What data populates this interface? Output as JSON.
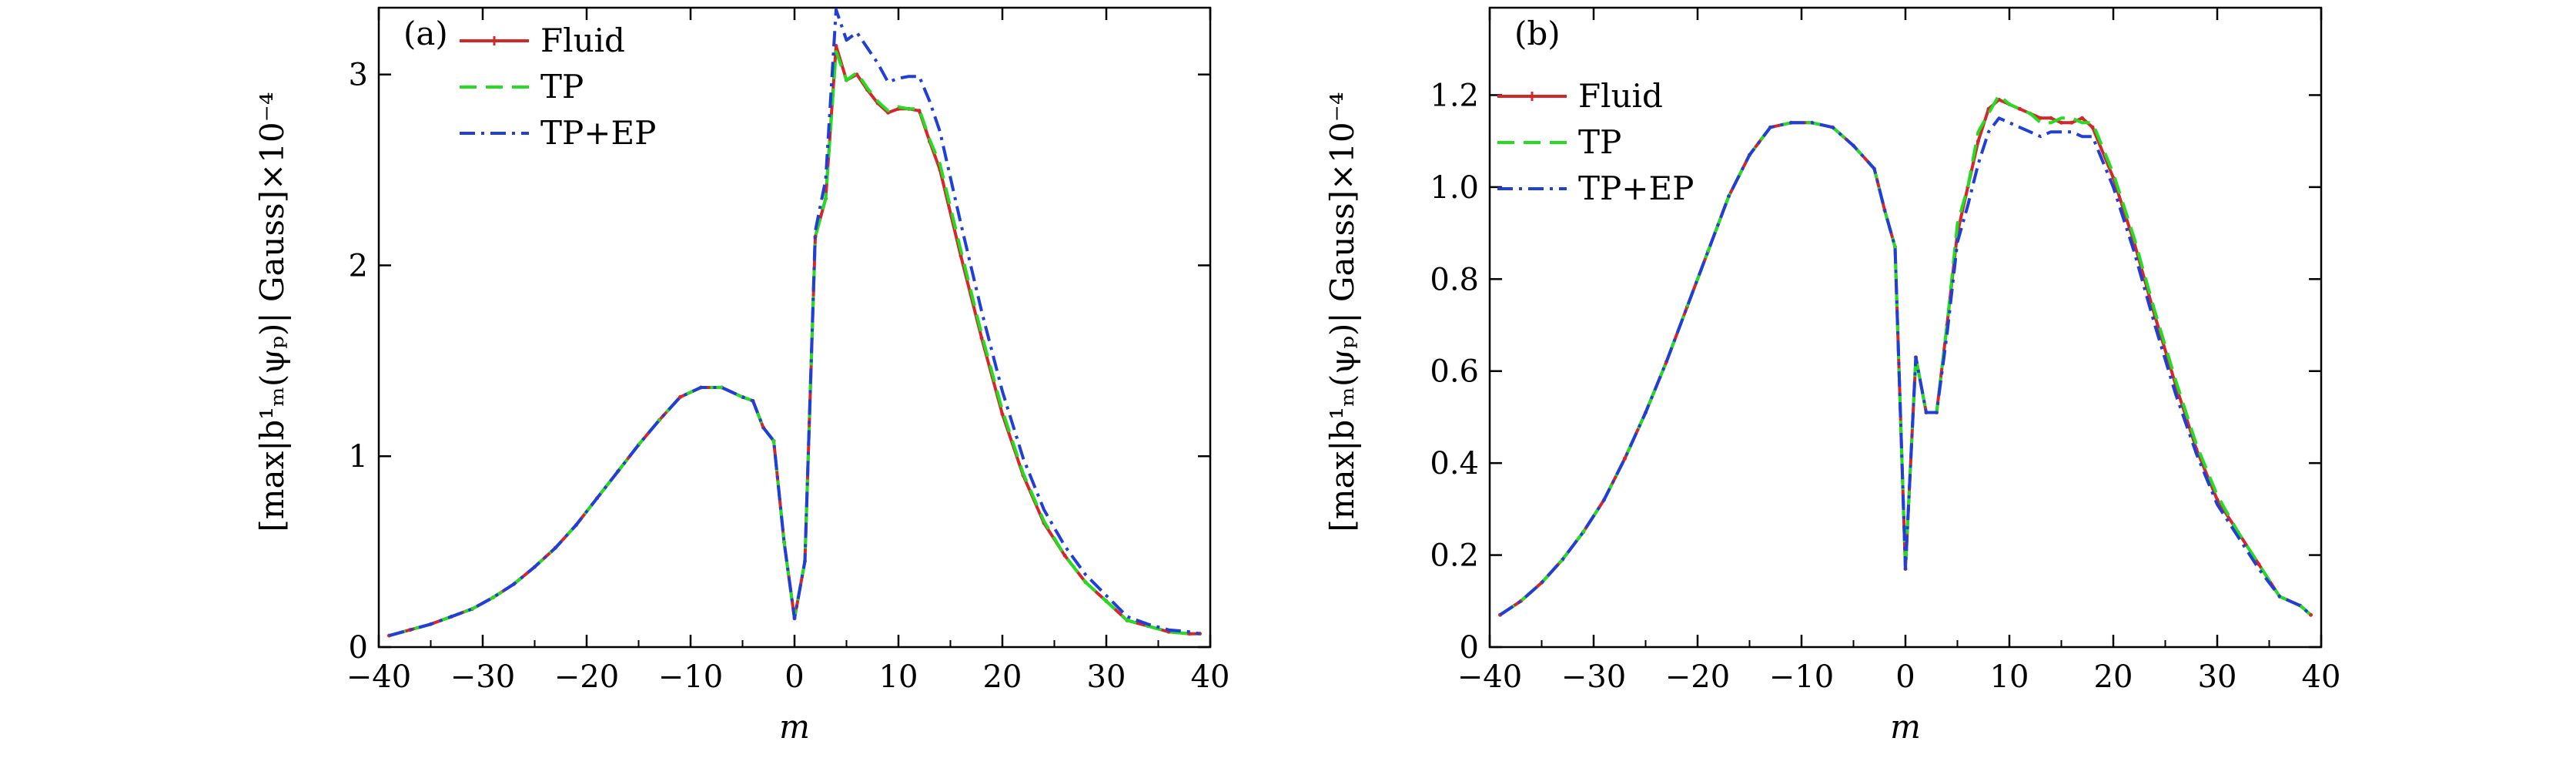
{
  "colors": {
    "fluid": "#d62728",
    "tp": "#22dd22",
    "tpep": "#1f3fd8",
    "axis": "#000000"
  },
  "chart_data": [
    {
      "type": "line",
      "panel_label": "(a)",
      "xlabel": "m",
      "ylabel": "[max|b¹ₘ(ψₚ)| Gauss]×10⁻⁴",
      "xlim": [
        -40,
        40
      ],
      "ylim": [
        0,
        3.35
      ],
      "xticks": [
        -40,
        -30,
        -20,
        -10,
        0,
        10,
        20,
        30,
        40
      ],
      "xtick_labels": [
        "−40",
        "−30",
        "−20",
        "−10",
        "0",
        "10",
        "20",
        "30",
        "40"
      ],
      "yticks": [
        0,
        1,
        2,
        3
      ],
      "ytick_labels": [
        "0",
        "1",
        "2",
        "3"
      ],
      "legend_position": "top-left",
      "series": [
        {
          "name": "Fluid",
          "style": "solid",
          "x": [
            -39,
            -37,
            -35,
            -33,
            -31,
            -29,
            -27,
            -25,
            -23,
            -21,
            -19,
            -17,
            -15,
            -13,
            -11,
            -9,
            -7,
            -5,
            -4,
            -3,
            -2,
            -1,
            0,
            1,
            2,
            3,
            4,
            5,
            6,
            7,
            8,
            9,
            10,
            11,
            12,
            13,
            14,
            16,
            18,
            20,
            22,
            24,
            26,
            28,
            30,
            32,
            34,
            36,
            38,
            39
          ],
          "y": [
            0.06,
            0.09,
            0.12,
            0.16,
            0.2,
            0.26,
            0.33,
            0.42,
            0.52,
            0.64,
            0.78,
            0.92,
            1.06,
            1.19,
            1.31,
            1.36,
            1.36,
            1.31,
            1.29,
            1.15,
            1.08,
            0.55,
            0.15,
            0.45,
            2.15,
            2.35,
            3.15,
            2.97,
            3.0,
            2.92,
            2.85,
            2.8,
            2.82,
            2.82,
            2.81,
            2.65,
            2.5,
            2.05,
            1.62,
            1.22,
            0.9,
            0.65,
            0.48,
            0.34,
            0.24,
            0.14,
            0.11,
            0.08,
            0.07,
            0.07
          ]
        },
        {
          "name": "TP",
          "style": "dashed",
          "x": [
            -39,
            -37,
            -35,
            -33,
            -31,
            -29,
            -27,
            -25,
            -23,
            -21,
            -19,
            -17,
            -15,
            -13,
            -11,
            -9,
            -7,
            -5,
            -4,
            -3,
            -2,
            -1,
            0,
            1,
            2,
            3,
            4,
            5,
            6,
            7,
            8,
            9,
            10,
            11,
            12,
            13,
            14,
            16,
            18,
            20,
            22,
            24,
            26,
            28,
            30,
            32,
            34,
            36,
            38,
            39
          ],
          "y": [
            0.06,
            0.09,
            0.12,
            0.16,
            0.2,
            0.26,
            0.33,
            0.42,
            0.52,
            0.64,
            0.78,
            0.92,
            1.06,
            1.19,
            1.31,
            1.36,
            1.36,
            1.31,
            1.29,
            1.15,
            1.08,
            0.55,
            0.15,
            0.45,
            2.15,
            2.35,
            3.12,
            2.97,
            3.01,
            2.93,
            2.86,
            2.81,
            2.83,
            2.82,
            2.82,
            2.66,
            2.53,
            2.08,
            1.64,
            1.24,
            0.91,
            0.66,
            0.48,
            0.34,
            0.24,
            0.14,
            0.11,
            0.08,
            0.07,
            0.07
          ]
        },
        {
          "name": "TP+EP",
          "style": "dashdot",
          "x": [
            -39,
            -37,
            -35,
            -33,
            -31,
            -29,
            -27,
            -25,
            -23,
            -21,
            -19,
            -17,
            -15,
            -13,
            -11,
            -9,
            -7,
            -5,
            -4,
            -3,
            -2,
            -1,
            0,
            1,
            2,
            3,
            4,
            5,
            6,
            7,
            8,
            9,
            10,
            11,
            12,
            13,
            14,
            16,
            18,
            20,
            22,
            24,
            26,
            28,
            30,
            32,
            34,
            36,
            38,
            39
          ],
          "y": [
            0.06,
            0.09,
            0.12,
            0.16,
            0.2,
            0.26,
            0.33,
            0.42,
            0.52,
            0.64,
            0.78,
            0.92,
            1.06,
            1.19,
            1.31,
            1.36,
            1.36,
            1.31,
            1.29,
            1.15,
            1.08,
            0.55,
            0.15,
            0.45,
            2.18,
            2.45,
            3.34,
            3.18,
            3.22,
            3.14,
            3.06,
            2.96,
            2.98,
            2.99,
            2.99,
            2.86,
            2.7,
            2.22,
            1.76,
            1.34,
            0.99,
            0.72,
            0.53,
            0.38,
            0.27,
            0.16,
            0.12,
            0.09,
            0.08,
            0.07
          ]
        }
      ]
    },
    {
      "type": "line",
      "panel_label": "(b)",
      "xlabel": "m",
      "ylabel": "[max|b¹ₘ(ψₚ)| Gauss]×10⁻⁴",
      "xlim": [
        -40,
        40
      ],
      "ylim": [
        0,
        1.39
      ],
      "xticks": [
        -40,
        -30,
        -20,
        -10,
        0,
        10,
        20,
        30,
        40
      ],
      "xtick_labels": [
        "−40",
        "−30",
        "−20",
        "−10",
        "0",
        "10",
        "20",
        "30",
        "40"
      ],
      "yticks": [
        0,
        0.2,
        0.4,
        0.6,
        0.8,
        1.0,
        1.2
      ],
      "ytick_labels": [
        "0",
        "0.2",
        "0.4",
        "0.6",
        "0.8",
        "1.0",
        "1.2"
      ],
      "legend_position": "top-left",
      "series": [
        {
          "name": "Fluid",
          "style": "solid",
          "x": [
            -39,
            -37,
            -35,
            -33,
            -31,
            -29,
            -27,
            -25,
            -23,
            -21,
            -19,
            -17,
            -15,
            -13,
            -11,
            -9,
            -7,
            -5,
            -3,
            -2,
            -1,
            0,
            1,
            2,
            3,
            4,
            5,
            6,
            7,
            8,
            9,
            10,
            11,
            12,
            13,
            14,
            15,
            16,
            17,
            18,
            20,
            22,
            24,
            26,
            28,
            30,
            32,
            34,
            36,
            38,
            39
          ],
          "y": [
            0.07,
            0.1,
            0.14,
            0.19,
            0.25,
            0.32,
            0.41,
            0.51,
            0.62,
            0.74,
            0.86,
            0.98,
            1.07,
            1.13,
            1.14,
            1.14,
            1.13,
            1.09,
            1.04,
            0.95,
            0.87,
            0.17,
            0.63,
            0.51,
            0.51,
            0.7,
            0.9,
            1.0,
            1.1,
            1.17,
            1.19,
            1.18,
            1.17,
            1.16,
            1.15,
            1.15,
            1.14,
            1.14,
            1.15,
            1.13,
            1.02,
            0.88,
            0.72,
            0.57,
            0.43,
            0.32,
            0.25,
            0.18,
            0.11,
            0.09,
            0.07
          ]
        },
        {
          "name": "TP",
          "style": "dashed",
          "x": [
            -39,
            -37,
            -35,
            -33,
            -31,
            -29,
            -27,
            -25,
            -23,
            -21,
            -19,
            -17,
            -15,
            -13,
            -11,
            -9,
            -7,
            -5,
            -3,
            -2,
            -1,
            0,
            1,
            2,
            3,
            4,
            5,
            6,
            7,
            8,
            9,
            10,
            11,
            12,
            13,
            14,
            15,
            16,
            17,
            18,
            20,
            22,
            24,
            26,
            28,
            30,
            32,
            34,
            36,
            38,
            39
          ],
          "y": [
            0.07,
            0.1,
            0.14,
            0.19,
            0.25,
            0.32,
            0.41,
            0.51,
            0.62,
            0.74,
            0.86,
            0.98,
            1.07,
            1.13,
            1.14,
            1.14,
            1.13,
            1.09,
            1.04,
            0.95,
            0.87,
            0.17,
            0.63,
            0.51,
            0.51,
            0.7,
            0.92,
            1.0,
            1.12,
            1.16,
            1.2,
            1.18,
            1.17,
            1.16,
            1.14,
            1.14,
            1.15,
            1.15,
            1.14,
            1.14,
            1.03,
            0.89,
            0.73,
            0.58,
            0.44,
            0.33,
            0.25,
            0.18,
            0.11,
            0.09,
            0.07
          ]
        },
        {
          "name": "TP+EP",
          "style": "dashdot",
          "x": [
            -39,
            -37,
            -35,
            -33,
            -31,
            -29,
            -27,
            -25,
            -23,
            -21,
            -19,
            -17,
            -15,
            -13,
            -11,
            -9,
            -7,
            -5,
            -3,
            -2,
            -1,
            0,
            1,
            2,
            3,
            4,
            5,
            6,
            7,
            8,
            9,
            10,
            11,
            12,
            13,
            14,
            15,
            16,
            17,
            18,
            20,
            22,
            24,
            26,
            28,
            30,
            32,
            34,
            36,
            38,
            39
          ],
          "y": [
            0.07,
            0.1,
            0.14,
            0.19,
            0.25,
            0.32,
            0.41,
            0.51,
            0.62,
            0.74,
            0.86,
            0.98,
            1.07,
            1.13,
            1.14,
            1.14,
            1.13,
            1.09,
            1.04,
            0.95,
            0.87,
            0.17,
            0.63,
            0.51,
            0.51,
            0.68,
            0.88,
            0.96,
            1.05,
            1.12,
            1.15,
            1.14,
            1.13,
            1.12,
            1.11,
            1.12,
            1.12,
            1.12,
            1.11,
            1.11,
            1.0,
            0.86,
            0.7,
            0.55,
            0.42,
            0.31,
            0.24,
            0.17,
            0.11,
            0.09,
            0.07
          ]
        }
      ]
    }
  ]
}
